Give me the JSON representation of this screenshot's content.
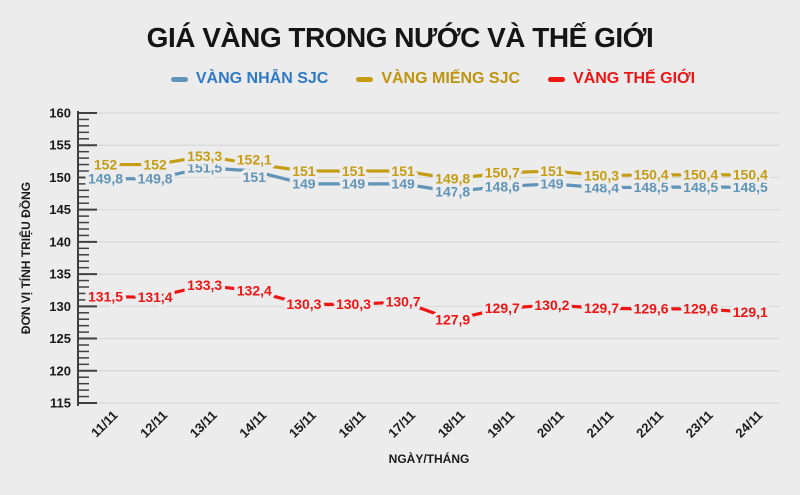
{
  "title": "GIÁ VÀNG TRONG NƯỚC VÀ THẾ GIỚI",
  "colors": {
    "background": "#ececec",
    "gridline": "#d8d8d8",
    "axis": "#404040",
    "tick_label": "#1a1a1a",
    "title": "#151515"
  },
  "chart_data": {
    "type": "line",
    "title": "GIÁ VÀNG TRONG NƯỚC VÀ THẾ GIỚI",
    "xlabel": "NGÀY/THÁNG",
    "ylabel": "ĐƠN VỊ TÍNH TRIỆU ĐỒNG",
    "x": [
      "11/11",
      "12/11",
      "13/11",
      "14/11",
      "15/11",
      "16/11",
      "17/11",
      "18/11",
      "19/11",
      "20/11",
      "21/11",
      "22/11",
      "23/11",
      "24/11"
    ],
    "ylim": [
      115,
      160
    ],
    "yticks": [
      115,
      120,
      125,
      130,
      135,
      140,
      145,
      150,
      155,
      160
    ],
    "minor_tick_step": 1,
    "grid": true,
    "legend_position": "top",
    "decimal_separator": ",",
    "data_labels": true,
    "series": [
      {
        "name": "VÀNG NHẪN SJC",
        "color": "#6094b8",
        "legend_text_color": "#2f7ac5",
        "values": [
          149.8,
          149.8,
          151.5,
          151,
          149,
          149,
          149,
          147.8,
          148.6,
          149,
          148.4,
          148.5,
          148.5,
          148.5
        ]
      },
      {
        "name": "VÀNG MIẾNG SJC",
        "color": "#c59d15",
        "legend_text_color": "#bf9410",
        "values": [
          152,
          152,
          153.3,
          152.1,
          151,
          151,
          151,
          149.8,
          150.7,
          151,
          150.3,
          150.4,
          150.4,
          150.4
        ]
      },
      {
        "name": "VÀNG THẾ GIỚI",
        "color": "#ee1515",
        "legend_text_color": "#ee1515",
        "values": [
          131.5,
          131.4,
          133.3,
          132.4,
          130.3,
          130.3,
          130.7,
          127.9,
          129.7,
          130.2,
          129.7,
          129.6,
          129.6,
          129.1
        ]
      }
    ]
  }
}
